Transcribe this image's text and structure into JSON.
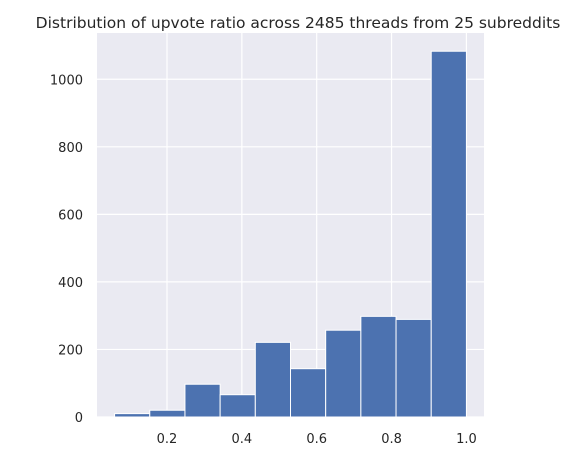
{
  "chart_data": {
    "type": "bar",
    "title": "Distribution of upvote ratio across 2485 threads from 25 subreddits",
    "xlabel": "",
    "ylabel": "",
    "bins": [
      {
        "x0": 0.06,
        "x1": 0.154,
        "count": 10
      },
      {
        "x0": 0.154,
        "x1": 0.248,
        "count": 20
      },
      {
        "x0": 0.248,
        "x1": 0.342,
        "count": 97
      },
      {
        "x0": 0.342,
        "x1": 0.436,
        "count": 66
      },
      {
        "x0": 0.436,
        "x1": 0.53,
        "count": 221
      },
      {
        "x0": 0.53,
        "x1": 0.624,
        "count": 143
      },
      {
        "x0": 0.624,
        "x1": 0.718,
        "count": 257
      },
      {
        "x0": 0.718,
        "x1": 0.812,
        "count": 298
      },
      {
        "x0": 0.812,
        "x1": 0.906,
        "count": 289
      },
      {
        "x0": 0.906,
        "x1": 1.0,
        "count": 1083
      }
    ],
    "xlim": [
      0.013,
      1.047
    ],
    "ylim": [
      0,
      1137
    ],
    "x_ticks": [
      {
        "value": 0.2,
        "label": "0.2"
      },
      {
        "value": 0.4,
        "label": "0.4"
      },
      {
        "value": 0.6,
        "label": "0.6"
      },
      {
        "value": 0.8,
        "label": "0.8"
      },
      {
        "value": 1.0,
        "label": "1.0"
      }
    ],
    "y_ticks": [
      {
        "value": 0,
        "label": "0"
      },
      {
        "value": 200,
        "label": "200"
      },
      {
        "value": 400,
        "label": "400"
      },
      {
        "value": 600,
        "label": "600"
      },
      {
        "value": 800,
        "label": "800"
      },
      {
        "value": 1000,
        "label": "1000"
      }
    ],
    "grid": true,
    "colors": {
      "background": "#eaeaf2",
      "bar": "#4c72b0",
      "bar_edge": "#ffffff",
      "grid": "#ffffff",
      "text": "#262626"
    }
  }
}
